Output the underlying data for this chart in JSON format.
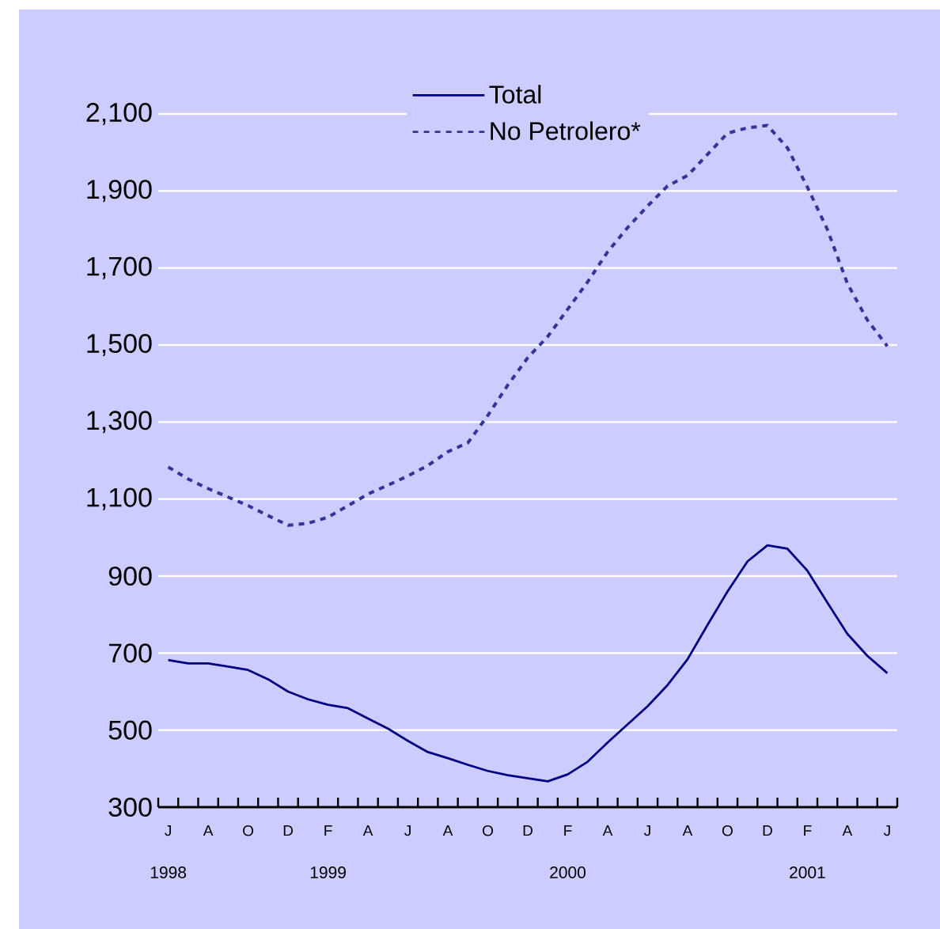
{
  "chart_data": {
    "type": "line",
    "categories": [
      "J",
      null,
      "A",
      null,
      "O",
      null,
      "D",
      null,
      "F",
      null,
      "A",
      null,
      "J",
      null,
      "A",
      null,
      "O",
      null,
      "D",
      null,
      "F",
      null,
      "A",
      null,
      "J",
      null,
      "A",
      null,
      "O",
      null,
      "D",
      null,
      "F",
      null,
      "A",
      null,
      "J"
    ],
    "series": [
      {
        "name": "Total",
        "color": "#000080",
        "line_style": "solid",
        "values": [
          682,
          673,
          673,
          665,
          656,
          632,
          600,
          580,
          566,
          557,
          530,
          504,
          472,
          443,
          427,
          410,
          394,
          383,
          375,
          367,
          385,
          418,
          468,
          515,
          562,
          617,
          684,
          773,
          860,
          938,
          980,
          971,
          914,
          831,
          750,
          693,
          648
        ]
      },
      {
        "name": "No Petrolero*",
        "color": "#333399",
        "line_style": "dashed",
        "values": [
          1183,
          1152,
          1127,
          1105,
          1083,
          1057,
          1032,
          1037,
          1053,
          1083,
          1113,
          1136,
          1160,
          1187,
          1223,
          1246,
          1317,
          1396,
          1467,
          1522,
          1593,
          1664,
          1742,
          1805,
          1861,
          1913,
          1940,
          1995,
          2050,
          2064,
          2070,
          2012,
          1910,
          1800,
          1660,
          1565,
          1497
        ]
      }
    ],
    "annotations": [
      "1998",
      "1999",
      "2000",
      "2001"
    ],
    "ylim": [
      300,
      2100
    ],
    "yticks": [
      300,
      500,
      700,
      900,
      {
        "value": 1100,
        "label": "1,100"
      },
      {
        "value": 1300,
        "label": "1,300"
      },
      {
        "value": 1500,
        "label": "1,500"
      },
      {
        "value": 1700,
        "label": "1,700"
      },
      {
        "value": 1900,
        "label": "1,900"
      },
      {
        "value": 2100,
        "label": "2,100"
      }
    ],
    "grid": "y",
    "legend": "top",
    "marker": "none"
  }
}
